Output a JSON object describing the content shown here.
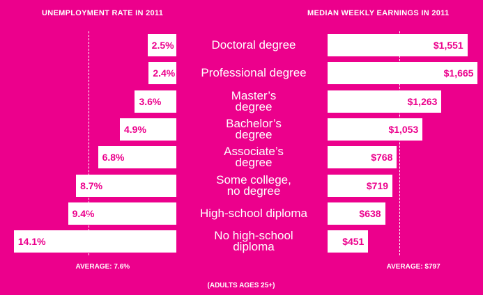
{
  "chart_data": {
    "type": "bar",
    "categories": [
      "Doctoral degree",
      "Professional degree",
      "Master’s\ndegree",
      "Bachelor’s\ndegree",
      "Associate’s\ndegree",
      "Some college,\nno degree",
      "High-school diploma",
      "No high-school\ndiploma"
    ],
    "series": [
      {
        "name": "UNEMPLOYMENT RATE IN 2011",
        "color": "#ffffff",
        "direction": "left",
        "xlim": [
          0,
          15
        ],
        "values": [
          2.5,
          2.4,
          3.6,
          4.9,
          6.8,
          8.7,
          9.4,
          14.1
        ],
        "value_labels": [
          "2.5%",
          "2.4%",
          "3.6%",
          "4.9%",
          "6.8%",
          "8.7%",
          "9.4%",
          "14.1%"
        ],
        "average": 7.6,
        "average_label": "AVERAGE: 7.6%"
      },
      {
        "name": "MEDIAN WEEKLY EARNINGS IN 2011",
        "color": "#ffffff",
        "direction": "right",
        "xlim": [
          0,
          1700
        ],
        "values": [
          1551,
          1665,
          1263,
          1053,
          768,
          719,
          638,
          451
        ],
        "value_labels": [
          "$1,551",
          "$1,665",
          "$1,263",
          "$1,053",
          "$768",
          "$719",
          "$638",
          "$451"
        ],
        "average": 797,
        "average_label": "AVERAGE: $797"
      }
    ],
    "note": "(ADULTS AGES 25+)"
  }
}
